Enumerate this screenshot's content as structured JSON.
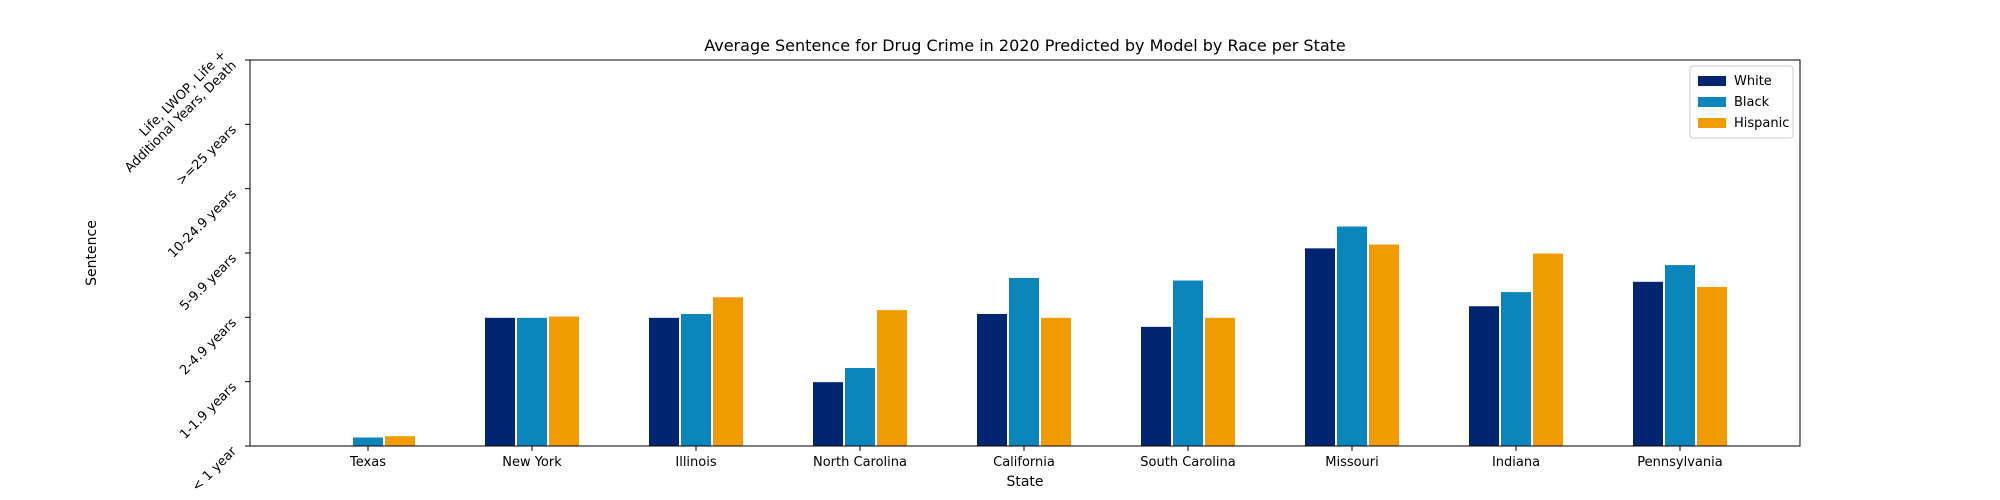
{
  "chart_data": {
    "type": "bar",
    "title": "Average Sentence for Drug Crime in 2020 Predicted by Model by Race per State",
    "xlabel": "State",
    "ylabel": "Sentence",
    "categories": [
      "Texas",
      "New York",
      "Illinois",
      "North Carolina",
      "California",
      "South Carolina",
      "Missouri",
      "Indiana",
      "Pennsylvania"
    ],
    "ylim": [
      0,
      6
    ],
    "yticks": [
      {
        "value": 0,
        "label": "< 1 year"
      },
      {
        "value": 1,
        "label": "1-1.9 years"
      },
      {
        "value": 2,
        "label": "2-4.9 years"
      },
      {
        "value": 3,
        "label": "5-9.9 years"
      },
      {
        "value": 4,
        "label": "10-24.9 years"
      },
      {
        "value": 5,
        "label": ">=25 years"
      },
      {
        "value": 6,
        "label": "Life, LWOP, Life +\nAdditional Years, Death"
      }
    ],
    "series": [
      {
        "name": "White",
        "color": "#002570",
        "values": [
          0.0,
          2.0,
          2.0,
          1.0,
          2.06,
          1.86,
          3.08,
          2.18,
          2.56
        ]
      },
      {
        "name": "Black",
        "color": "#0a86bd",
        "values": [
          0.14,
          2.0,
          2.06,
          1.22,
          2.62,
          2.58,
          3.42,
          2.4,
          2.82
        ]
      },
      {
        "name": "Hispanic",
        "color": "#f09c00",
        "values": [
          0.16,
          2.02,
          2.32,
          2.12,
          2.0,
          2.0,
          3.14,
          3.0,
          2.48
        ]
      }
    ],
    "legend": {
      "position": "top-right"
    },
    "grid": false
  }
}
